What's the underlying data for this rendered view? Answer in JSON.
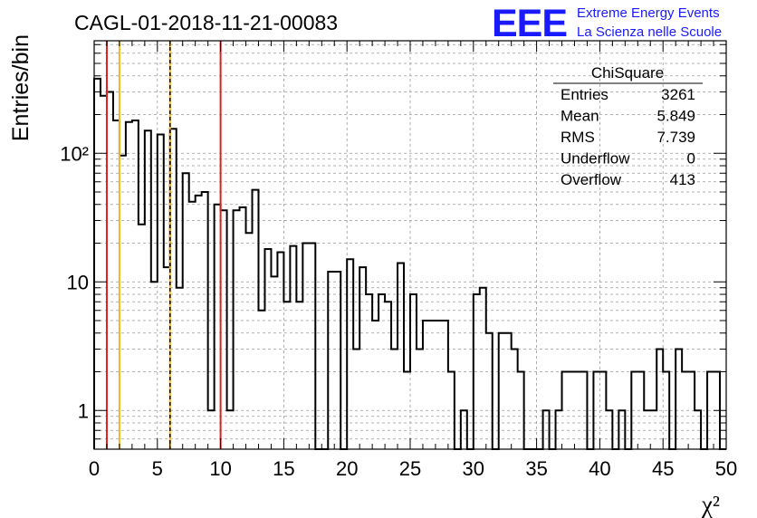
{
  "header": {
    "run_title": "CAGL-01-2018-11-21-00083",
    "logo_text": "EEE",
    "brand_line1": "Extreme Energy Events",
    "brand_line2": "La Scienza nelle Scuole"
  },
  "stats": {
    "title": "ChiSquare",
    "rows": [
      {
        "label": "Entries",
        "value": "3261"
      },
      {
        "label": "Mean",
        "value": "5.849"
      },
      {
        "label": "RMS",
        "value": "7.739"
      },
      {
        "label": "Underflow",
        "value": "0"
      },
      {
        "label": "Overflow",
        "value": "413"
      }
    ]
  },
  "colors": {
    "histogram": "#000000",
    "grid": "#999999",
    "cut_red": "#e02020",
    "cut_orange": "#f2b61e",
    "logo_blue": "#1a1aff"
  },
  "chart_data": {
    "type": "histogram",
    "xlabel": "χ²",
    "ylabel": "Entries/bin",
    "xlim": [
      0,
      50
    ],
    "ylim": [
      0.5,
      750
    ],
    "yscale": "log",
    "grid": true,
    "bin_width": 0.5,
    "x_ticks": [
      "0",
      "5",
      "10",
      "15",
      "20",
      "25",
      "30",
      "35",
      "40",
      "45",
      "50"
    ],
    "y_ticks": [
      {
        "value": 1,
        "label": "1"
      },
      {
        "value": 10,
        "label": "10"
      },
      {
        "value": 100,
        "label": "10²"
      }
    ],
    "bin_counts": [
      380,
      280,
      300,
      180,
      96,
      175,
      180,
      28,
      150,
      10,
      140,
      13,
      155,
      9,
      70,
      42,
      47,
      50,
      1,
      40,
      36,
      1,
      36,
      38,
      24,
      52,
      6,
      18,
      11,
      17,
      7,
      19,
      7,
      20,
      20,
      0,
      0,
      12,
      12,
      0,
      15,
      3,
      13,
      8,
      5,
      8,
      7,
      3,
      14,
      2,
      8,
      3,
      5,
      5,
      5,
      5,
      2,
      0,
      1,
      0,
      8,
      9,
      4,
      0,
      4,
      4,
      3,
      2,
      0,
      0,
      0,
      1,
      0,
      1,
      2,
      2,
      2,
      2,
      0,
      2,
      2,
      1,
      0,
      1,
      0,
      2,
      2,
      1,
      1,
      3,
      2,
      0,
      3,
      2,
      2,
      1,
      0,
      2,
      2,
      0
    ],
    "vertical_lines": [
      {
        "x": 1,
        "color": "#e02020",
        "style": "solid"
      },
      {
        "x": 2,
        "color": "#f2b61e",
        "style": "solid"
      },
      {
        "x": 6,
        "color": "#f2b61e",
        "style": "solid"
      },
      {
        "x": 6,
        "color": "#000000",
        "style": "dashed"
      },
      {
        "x": 10,
        "color": "#e02020",
        "style": "solid"
      }
    ]
  }
}
